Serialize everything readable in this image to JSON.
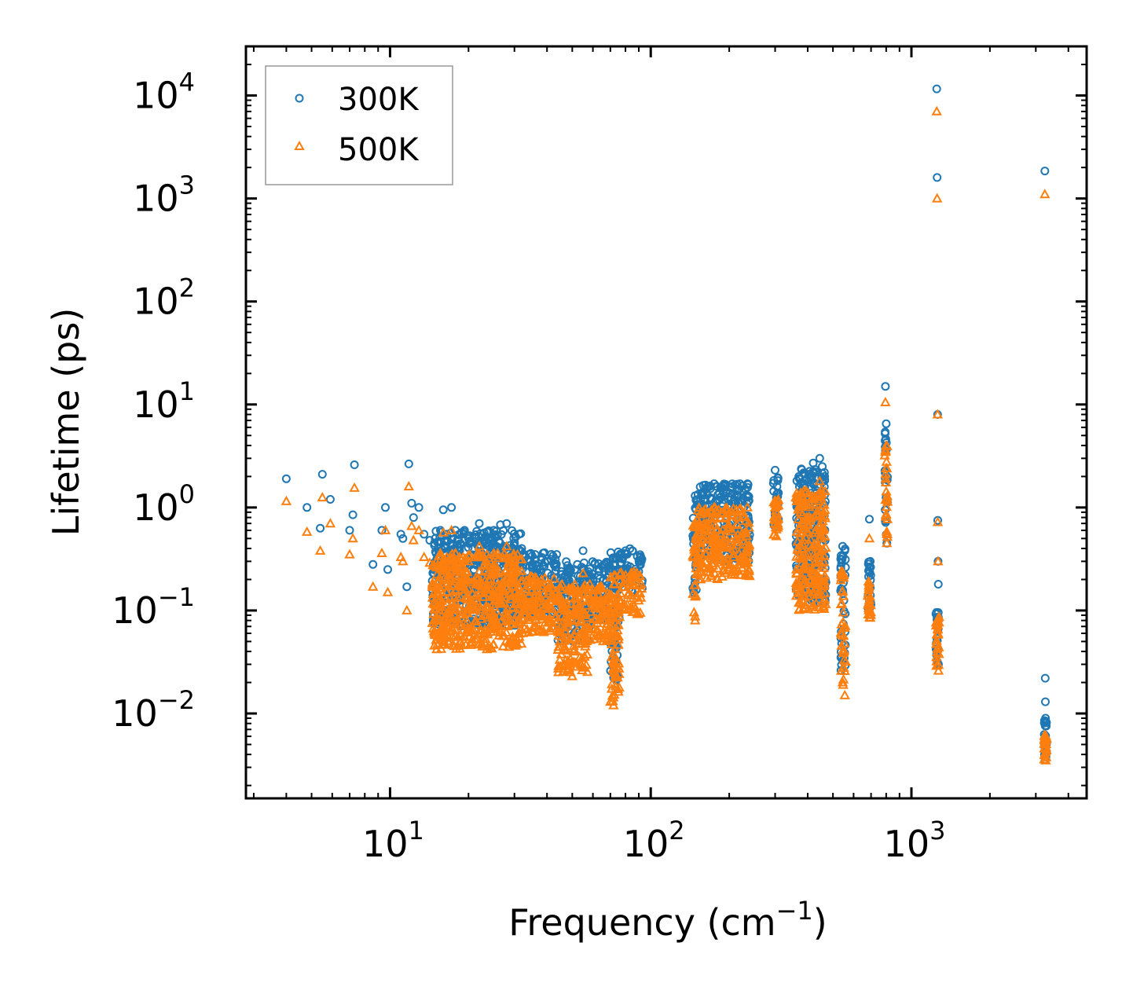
{
  "chart_data": {
    "type": "scatter",
    "xscale": "log",
    "yscale": "log",
    "xlabel": "Frequency (cm",
    "xlabel_exp": "−1",
    "xlabel_suffix": ")",
    "ylabel": "Lifetime (ps)",
    "xlim": [
      2.8,
      4700
    ],
    "ylim": [
      0.0015,
      30000
    ],
    "x_ticks": [
      {
        "base": "10",
        "exp": "1",
        "value": 10
      },
      {
        "base": "10",
        "exp": "2",
        "value": 100
      },
      {
        "base": "10",
        "exp": "3",
        "value": 1000
      }
    ],
    "y_ticks": [
      {
        "base": "10",
        "exp": "−2",
        "value": 0.01
      },
      {
        "base": "10",
        "exp": "−1",
        "value": 0.1
      },
      {
        "base": "10",
        "exp": "0",
        "value": 1
      },
      {
        "base": "10",
        "exp": "1",
        "value": 10
      },
      {
        "base": "10",
        "exp": "2",
        "value": 100
      },
      {
        "base": "10",
        "exp": "3",
        "value": 1000
      },
      {
        "base": "10",
        "exp": "4",
        "value": 10000
      }
    ],
    "legend_position": "top-left",
    "series": [
      {
        "name": "300K",
        "marker": "circle",
        "color": "#1f77b4",
        "points": [
          [
            4.0,
            1.9
          ],
          [
            4.8,
            1.0
          ],
          [
            5.4,
            0.63
          ],
          [
            5.5,
            2.1
          ],
          [
            5.9,
            1.2
          ],
          [
            7.0,
            0.6
          ],
          [
            7.2,
            0.85
          ],
          [
            7.3,
            2.6
          ],
          [
            8.6,
            0.28
          ],
          [
            9.3,
            0.6
          ],
          [
            9.6,
            1.0
          ],
          [
            9.8,
            0.25
          ],
          [
            11.0,
            0.55
          ],
          [
            11.2,
            0.5
          ],
          [
            11.6,
            0.17
          ],
          [
            11.8,
            2.65
          ],
          [
            12.1,
            1.1
          ],
          [
            12.3,
            0.8
          ],
          [
            12.9,
            1.0
          ],
          [
            13.5,
            0.55
          ],
          [
            14.2,
            0.48
          ],
          [
            14.8,
            0.45
          ],
          [
            15.1,
            0.07
          ],
          [
            15.6,
            0.6
          ],
          [
            16.0,
            0.95
          ],
          [
            16.5,
            0.55
          ],
          [
            17.2,
            1.0
          ],
          [
            17.8,
            0.6
          ],
          [
            18.5,
            0.55
          ],
          [
            19.3,
            0.6
          ],
          [
            20.0,
            0.5
          ],
          [
            21.0,
            0.52
          ],
          [
            22.0,
            0.7
          ],
          [
            23.5,
            0.58
          ],
          [
            25.0,
            0.6
          ],
          [
            26.5,
            0.68
          ],
          [
            28.0,
            0.7
          ],
          [
            30.0,
            0.45
          ],
          [
            32.0,
            0.4
          ],
          [
            36.0,
            0.35
          ],
          [
            40.0,
            0.3
          ],
          [
            44.0,
            0.14
          ],
          [
            50.0,
            0.2
          ],
          [
            55.0,
            0.38
          ],
          [
            60.0,
            0.2
          ],
          [
            66.0,
            0.2
          ],
          [
            70.0,
            0.08
          ],
          [
            75.0,
            0.37
          ],
          [
            80.0,
            0.38
          ],
          [
            85.0,
            0.38
          ],
          [
            92.0,
            0.3
          ],
          [
            148.0,
            1.3
          ],
          [
            160.0,
            1.2
          ],
          [
            175.0,
            1.7
          ],
          [
            190.0,
            1.4
          ],
          [
            205.0,
            1.6
          ],
          [
            220.0,
            1.7
          ],
          [
            235.0,
            1.7
          ],
          [
            300.0,
            2.3
          ],
          [
            305.0,
            1.6
          ],
          [
            370.0,
            2.0
          ],
          [
            420.0,
            2.7
          ],
          [
            445.0,
            3.0
          ],
          [
            455.0,
            2.5
          ],
          [
            545.0,
            0.42
          ],
          [
            555.0,
            0.38
          ],
          [
            690.0,
            0.77
          ],
          [
            695.0,
            0.3
          ],
          [
            795.0,
            15.0
          ],
          [
            800.0,
            6.5
          ],
          [
            805.0,
            0.45
          ],
          [
            1250.0,
            11600.0
          ],
          [
            1255.0,
            1600.0
          ],
          [
            1260.0,
            8.0
          ],
          [
            1262.0,
            0.75
          ],
          [
            1265.0,
            0.3
          ],
          [
            1268.0,
            0.18
          ],
          [
            1270.0,
            0.03
          ],
          [
            3250.0,
            1850.0
          ],
          [
            3260.0,
            0.022
          ],
          [
            3265.0,
            0.013
          ],
          [
            3270.0,
            0.009
          ],
          [
            3275.0,
            0.0045
          ]
        ],
        "bands": [
          {
            "x": [
              14.5,
              32.0
            ],
            "y": [
              0.07,
              0.6
            ]
          },
          {
            "x": [
              32.0,
              44.0
            ],
            "y": [
              0.09,
              0.38
            ]
          },
          {
            "x": [
              44.0,
              58.0
            ],
            "y": [
              0.05,
              0.3
            ]
          },
          {
            "x": [
              58.0,
              70.0
            ],
            "y": [
              0.08,
              0.3
            ]
          },
          {
            "x": [
              70.0,
              76.0
            ],
            "y": [
              0.02,
              0.38
            ]
          },
          {
            "x": [
              76.0,
              93.0
            ],
            "y": [
              0.15,
              0.4
            ]
          },
          {
            "x": [
              145.0,
              150.0
            ],
            "y": [
              0.12,
              1.3
            ]
          },
          {
            "x": [
              150.0,
              240.0
            ],
            "y": [
              0.3,
              1.7
            ]
          },
          {
            "x": [
              295.0,
              310.0
            ],
            "y": [
              0.6,
              2.2
            ]
          },
          {
            "x": [
              360.0,
              470.0
            ],
            "y": [
              0.12,
              2.4
            ]
          },
          {
            "x": [
              535.0,
              560.0
            ],
            "y": [
              0.025,
              0.4
            ]
          },
          {
            "x": [
              680.0,
              700.0
            ],
            "y": [
              0.09,
              0.3
            ]
          },
          {
            "x": [
              790.0,
              810.0
            ],
            "y": [
              0.5,
              6.0
            ]
          },
          {
            "x": [
              1240.0,
              1280.0
            ],
            "y": [
              0.03,
              0.1
            ]
          },
          {
            "x": [
              3230.0,
              3300.0
            ],
            "y": [
              0.0035,
              0.009
            ]
          }
        ]
      },
      {
        "name": "500K",
        "marker": "triangle",
        "color": "#ff7f0e",
        "points": [
          [
            4.0,
            1.15
          ],
          [
            4.8,
            0.58
          ],
          [
            5.4,
            0.38
          ],
          [
            5.5,
            1.25
          ],
          [
            5.9,
            0.7
          ],
          [
            7.0,
            0.35
          ],
          [
            7.2,
            0.5
          ],
          [
            7.3,
            1.55
          ],
          [
            8.6,
            0.17
          ],
          [
            9.3,
            0.36
          ],
          [
            9.6,
            0.6
          ],
          [
            9.8,
            0.15
          ],
          [
            11.0,
            0.33
          ],
          [
            11.2,
            0.3
          ],
          [
            11.6,
            0.1
          ],
          [
            11.8,
            1.6
          ],
          [
            12.1,
            0.66
          ],
          [
            12.3,
            0.48
          ],
          [
            12.9,
            0.6
          ],
          [
            13.5,
            0.33
          ],
          [
            14.2,
            0.29
          ],
          [
            14.8,
            0.27
          ],
          [
            15.1,
            0.042
          ],
          [
            15.6,
            0.36
          ],
          [
            16.0,
            0.57
          ],
          [
            16.5,
            0.33
          ],
          [
            17.2,
            0.6
          ],
          [
            17.8,
            0.36
          ],
          [
            18.5,
            0.33
          ],
          [
            20.0,
            0.3
          ],
          [
            22.0,
            0.42
          ],
          [
            25.0,
            0.36
          ],
          [
            28.0,
            0.42
          ],
          [
            30.0,
            0.27
          ],
          [
            36.0,
            0.21
          ],
          [
            44.0,
            0.08
          ],
          [
            50.0,
            0.023
          ],
          [
            55.0,
            0.23
          ],
          [
            60.0,
            0.12
          ],
          [
            70.0,
            0.013
          ],
          [
            72.0,
            0.012
          ],
          [
            80.0,
            0.22
          ],
          [
            92.0,
            0.18
          ],
          [
            148.0,
            0.08
          ],
          [
            160.0,
            0.7
          ],
          [
            175.0,
            1.0
          ],
          [
            205.0,
            0.9
          ],
          [
            235.0,
            1.0
          ],
          [
            300.0,
            1.0
          ],
          [
            370.0,
            1.2
          ],
          [
            380.0,
            0.15
          ],
          [
            445.0,
            1.8
          ],
          [
            545.0,
            0.02
          ],
          [
            555.0,
            0.015
          ],
          [
            690.0,
            0.5
          ],
          [
            695.0,
            0.085
          ],
          [
            795.0,
            10.5
          ],
          [
            800.0,
            4.0
          ],
          [
            805.0,
            0.45
          ],
          [
            1250.0,
            7000.0
          ],
          [
            1255.0,
            1000.0
          ],
          [
            1260.0,
            8.0
          ],
          [
            1262.0,
            0.72
          ],
          [
            1265.0,
            0.3
          ],
          [
            1270.0,
            0.026
          ],
          [
            3250.0,
            1100.0
          ],
          [
            3270.0,
            0.006
          ],
          [
            3275.0,
            0.0035
          ]
        ],
        "bands": [
          {
            "x": [
              14.5,
              32.0
            ],
            "y": [
              0.042,
              0.36
            ]
          },
          {
            "x": [
              32.0,
              44.0
            ],
            "y": [
              0.06,
              0.22
            ]
          },
          {
            "x": [
              44.0,
              58.0
            ],
            "y": [
              0.025,
              0.18
            ]
          },
          {
            "x": [
              58.0,
              70.0
            ],
            "y": [
              0.05,
              0.18
            ]
          },
          {
            "x": [
              70.0,
              76.0
            ],
            "y": [
              0.013,
              0.22
            ]
          },
          {
            "x": [
              76.0,
              93.0
            ],
            "y": [
              0.09,
              0.24
            ]
          },
          {
            "x": [
              145.0,
              150.0
            ],
            "y": [
              0.08,
              0.8
            ]
          },
          {
            "x": [
              150.0,
              240.0
            ],
            "y": [
              0.2,
              1.0
            ]
          },
          {
            "x": [
              295.0,
              310.0
            ],
            "y": [
              0.5,
              1.2
            ]
          },
          {
            "x": [
              360.0,
              470.0
            ],
            "y": [
              0.1,
              1.5
            ]
          },
          {
            "x": [
              535.0,
              560.0
            ],
            "y": [
              0.018,
              0.25
            ]
          },
          {
            "x": [
              680.0,
              700.0
            ],
            "y": [
              0.085,
              0.2
            ]
          },
          {
            "x": [
              790.0,
              810.0
            ],
            "y": [
              0.5,
              4.0
            ]
          },
          {
            "x": [
              1240.0,
              1280.0
            ],
            "y": [
              0.027,
              0.09
            ]
          },
          {
            "x": [
              3230.0,
              3300.0
            ],
            "y": [
              0.0033,
              0.007
            ]
          }
        ]
      }
    ]
  }
}
